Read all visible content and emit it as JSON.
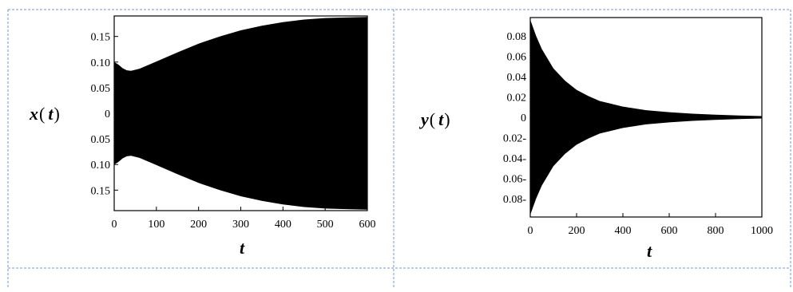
{
  "chart_data": [
    {
      "type": "area",
      "title": "",
      "xlabel": "t",
      "ylabel_var": "x",
      "ylabel_open": "(",
      "ylabel_arg": "t",
      "ylabel_close": ")",
      "xlim": [
        0,
        600
      ],
      "ylim": [
        -0.19,
        0.19
      ],
      "x_ticks": [
        {
          "value": 0,
          "label": "0"
        },
        {
          "value": 100,
          "label": "100"
        },
        {
          "value": 200,
          "label": "200"
        },
        {
          "value": 300,
          "label": "300"
        },
        {
          "value": 400,
          "label": "400"
        },
        {
          "value": 500,
          "label": "500"
        },
        {
          "value": 600,
          "label": "600"
        }
      ],
      "y_ticks": [
        {
          "value": 0.15,
          "label": "0.15"
        },
        {
          "value": 0.1,
          "label": "0.10"
        },
        {
          "value": 0.05,
          "label": "0.05"
        },
        {
          "value": 0,
          "label": "0"
        },
        {
          "value": -0.05,
          "label": "0.05"
        },
        {
          "value": -0.1,
          "label": "0.10"
        },
        {
          "value": -0.15,
          "label": "0.15"
        }
      ],
      "series": [
        {
          "color": "#000000",
          "envelope": {
            "t": [
              0,
              10,
              20,
              30,
              40,
              60,
              100,
              150,
              200,
              250,
              300,
              350,
              400,
              450,
              500,
              550,
              600
            ],
            "upper": [
              0.1,
              0.095,
              0.088,
              0.084,
              0.083,
              0.087,
              0.101,
              0.119,
              0.136,
              0.15,
              0.162,
              0.171,
              0.178,
              0.183,
              0.186,
              0.187,
              0.188
            ],
            "lower": [
              -0.1,
              -0.095,
              -0.088,
              -0.084,
              -0.083,
              -0.087,
              -0.101,
              -0.119,
              -0.136,
              -0.15,
              -0.162,
              -0.171,
              -0.178,
              -0.183,
              -0.186,
              -0.187,
              -0.188
            ]
          }
        }
      ]
    },
    {
      "type": "area",
      "title": "",
      "xlabel": "t",
      "ylabel_var": "y",
      "ylabel_open": "(",
      "ylabel_arg": "t",
      "ylabel_close": ")",
      "xlim": [
        0,
        1000
      ],
      "ylim": [
        -0.098,
        0.098
      ],
      "x_ticks": [
        {
          "value": 0,
          "label": "0"
        },
        {
          "value": 200,
          "label": "200"
        },
        {
          "value": 400,
          "label": "400"
        },
        {
          "value": 600,
          "label": "600"
        },
        {
          "value": 800,
          "label": "800"
        },
        {
          "value": 1000,
          "label": "1000"
        }
      ],
      "y_ticks": [
        {
          "value": 0.08,
          "label": "0.08"
        },
        {
          "value": 0.06,
          "label": "0.06"
        },
        {
          "value": 0.04,
          "label": "0.04"
        },
        {
          "value": 0.02,
          "label": "0.02"
        },
        {
          "value": 0,
          "label": "0"
        },
        {
          "value": -0.02,
          "label": "0.02-"
        },
        {
          "value": -0.04,
          "label": "0.04-"
        },
        {
          "value": -0.06,
          "label": "0.06-"
        },
        {
          "value": -0.08,
          "label": "0.08-"
        }
      ],
      "series": [
        {
          "color": "#000000",
          "envelope": {
            "t": [
              0,
              25,
              50,
              100,
              150,
              200,
              250,
              300,
              400,
              500,
              600,
              700,
              800,
              900,
              1000
            ],
            "upper": [
              0.096,
              0.08,
              0.067,
              0.048,
              0.036,
              0.027,
              0.021,
              0.016,
              0.0105,
              0.007,
              0.005,
              0.0035,
              0.0025,
              0.0018,
              0.0012
            ],
            "lower": [
              -0.096,
              -0.08,
              -0.067,
              -0.048,
              -0.036,
              -0.027,
              -0.021,
              -0.016,
              -0.0105,
              -0.007,
              -0.005,
              -0.0035,
              -0.0025,
              -0.0018,
              -0.0012
            ]
          }
        }
      ]
    }
  ]
}
